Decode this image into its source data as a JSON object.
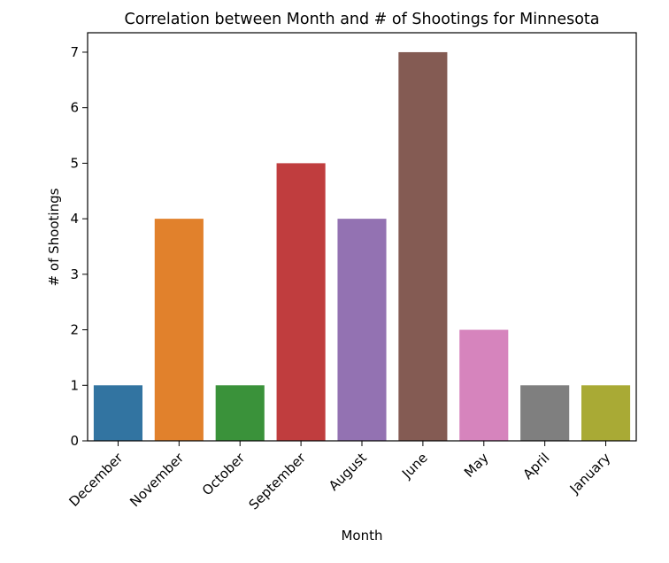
{
  "chart_data": {
    "type": "bar",
    "title": "Correlation between Month and # of Shootings for Minnesota",
    "xlabel": "Month",
    "ylabel": "# of Shootings",
    "categories": [
      "December",
      "November",
      "October",
      "September",
      "August",
      "June",
      "May",
      "April",
      "January"
    ],
    "values": [
      1,
      4,
      1,
      5,
      4,
      7,
      2,
      1,
      1
    ],
    "colors": [
      "#3274a1",
      "#e1812c",
      "#3a923a",
      "#c03d3e",
      "#9372b2",
      "#845b53",
      "#d684bd",
      "#7f7f7f",
      "#a9aa35"
    ],
    "ylim": [
      0,
      7.35
    ],
    "yticks": [
      "0",
      "1",
      "2",
      "3",
      "4",
      "5",
      "6",
      "7"
    ],
    "grid": false
  }
}
